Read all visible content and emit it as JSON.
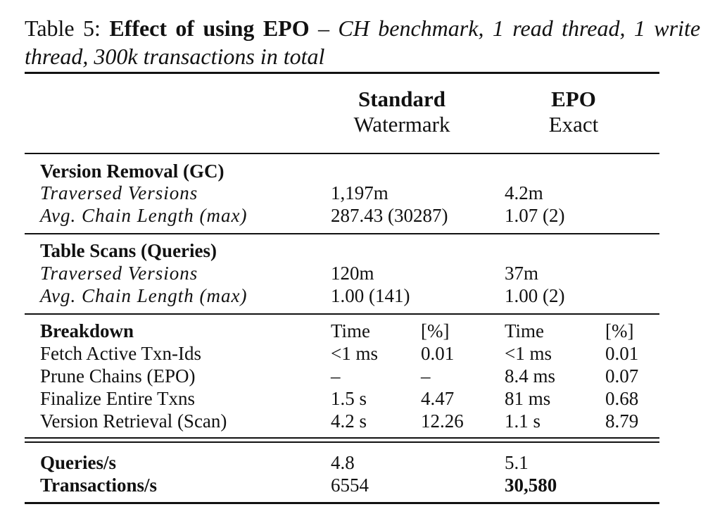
{
  "caption": {
    "label": "Table 5:",
    "title": "Effect of using EPO",
    "dash": "–",
    "description": "CH benchmark, 1 read thread, 1 write thread, 300k transactions in total"
  },
  "header": {
    "columns": [
      {
        "line1": "Standard",
        "line2": "Watermark"
      },
      {
        "line1": "EPO",
        "line2": "Exact"
      }
    ]
  },
  "sections": [
    {
      "title": "Version Removal (GC)",
      "rows": [
        [
          "Traversed Versions",
          "1,197m",
          "4.2m"
        ],
        [
          "Avg. Chain Length (max)",
          "287.43 (30287)",
          "1.07 (2)"
        ]
      ]
    },
    {
      "title": "Table Scans (Queries)",
      "rows": [
        [
          "Traversed Versions",
          "120m",
          "37m"
        ],
        [
          "Avg. Chain Length (max)",
          "1.00 (141)",
          "1.00 (2)"
        ]
      ]
    },
    {
      "title": "Breakdown",
      "subheader": [
        "Time",
        "[%]",
        "Time",
        "[%]"
      ],
      "rows": [
        [
          "Fetch Active Txn-Ids",
          "<1 ms",
          "0.01",
          "<1 ms",
          "0.01"
        ],
        [
          "Prune Chains (EPO)",
          "–",
          "–",
          "8.4 ms",
          "0.07"
        ],
        [
          "Finalize Entire Txns",
          "1.5 s",
          "4.47",
          "81 ms",
          "0.68"
        ],
        [
          "Version Retrieval (Scan)",
          "4.2 s",
          "12.26",
          "1.1 s",
          "8.79"
        ]
      ]
    },
    {
      "rows": [
        [
          "Queries/s",
          "4.8",
          "5.1"
        ],
        [
          "Transactions/s",
          "6554",
          "30,580"
        ]
      ]
    }
  ]
}
